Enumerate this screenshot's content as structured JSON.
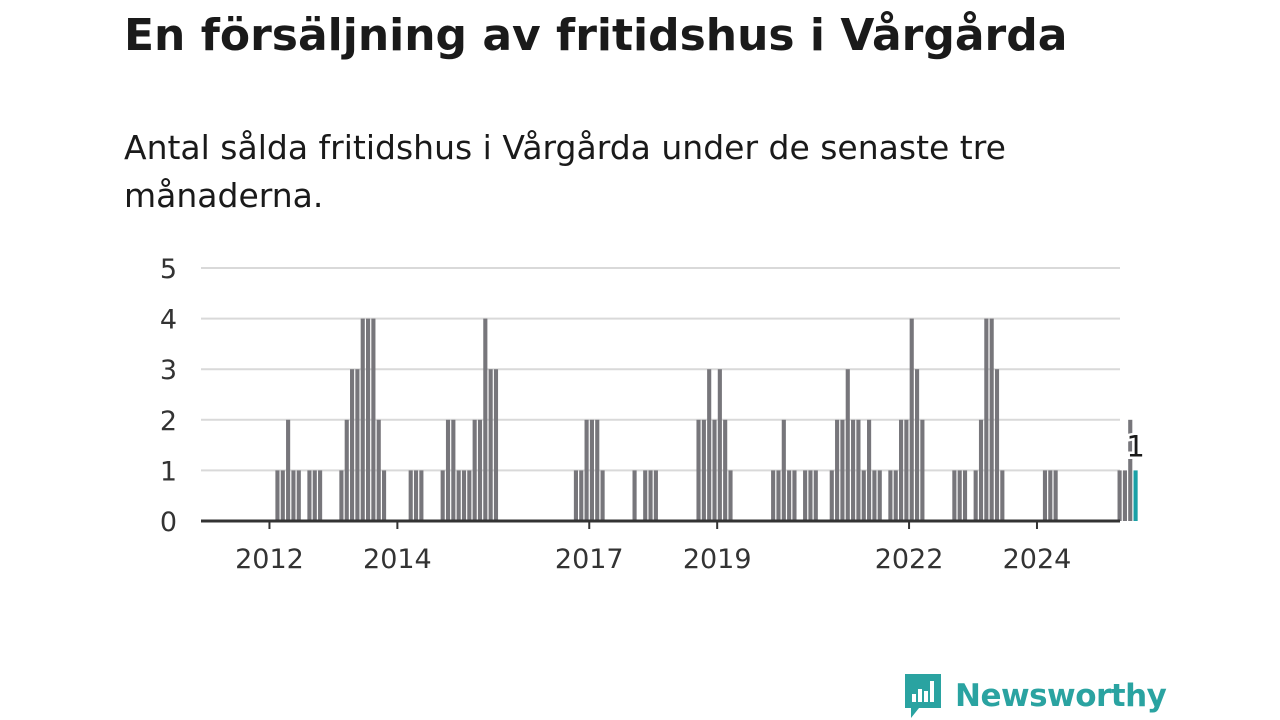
{
  "title": "En försäljning av fritidshus i Vårgårda",
  "subtitle": "Antal sålda fritidshus i Vårgårda under de senaste tre månaderna.",
  "colors": {
    "bar": "#77767b",
    "highlight": "#1aa0a6",
    "brand": "#2aa3a1",
    "grid": "#d9d9d9",
    "axis": "#333333",
    "text": "#333333"
  },
  "brand": {
    "name": "Newsworthy",
    "icon": "bar-chart-speech-bubble-icon"
  },
  "chart_data": {
    "type": "bar",
    "title": "",
    "xlabel": "",
    "ylabel": "",
    "x_start": "2011-01",
    "ylim": [
      0,
      5
    ],
    "y_ticks": [
      0,
      1,
      2,
      3,
      4,
      5
    ],
    "x_tick_labels": [
      "2012",
      "2014",
      "2017",
      "2019",
      "2022",
      "2024"
    ],
    "grid": true,
    "values": [
      0,
      0,
      0,
      0,
      0,
      0,
      0,
      0,
      0,
      0,
      0,
      0,
      0,
      1,
      1,
      2,
      1,
      1,
      0,
      1,
      1,
      1,
      0,
      0,
      0,
      1,
      2,
      3,
      3,
      4,
      4,
      4,
      2,
      1,
      0,
      0,
      0,
      0,
      1,
      1,
      1,
      0,
      0,
      0,
      1,
      2,
      2,
      1,
      1,
      1,
      2,
      2,
      4,
      3,
      3,
      0,
      0,
      0,
      0,
      0,
      0,
      0,
      0,
      0,
      0,
      0,
      0,
      0,
      0,
      1,
      1,
      2,
      2,
      2,
      1,
      0,
      0,
      0,
      0,
      0,
      1,
      0,
      1,
      1,
      1,
      0,
      0,
      0,
      0,
      0,
      0,
      0,
      2,
      2,
      3,
      2,
      3,
      2,
      1,
      0,
      0,
      0,
      0,
      0,
      0,
      0,
      1,
      1,
      2,
      1,
      1,
      0,
      1,
      1,
      1,
      0,
      0,
      1,
      2,
      2,
      3,
      2,
      2,
      1,
      2,
      1,
      1,
      0,
      1,
      1,
      2,
      2,
      4,
      3,
      2,
      0,
      0,
      0,
      0,
      0,
      1,
      1,
      1,
      0,
      1,
      2,
      4,
      4,
      3,
      1,
      0,
      0,
      0,
      0,
      0,
      0,
      0,
      1,
      1,
      1,
      0,
      0,
      0,
      0,
      0,
      0,
      0,
      0,
      0,
      0,
      0,
      1,
      1,
      2,
      1
    ],
    "highlight_label": "1"
  }
}
